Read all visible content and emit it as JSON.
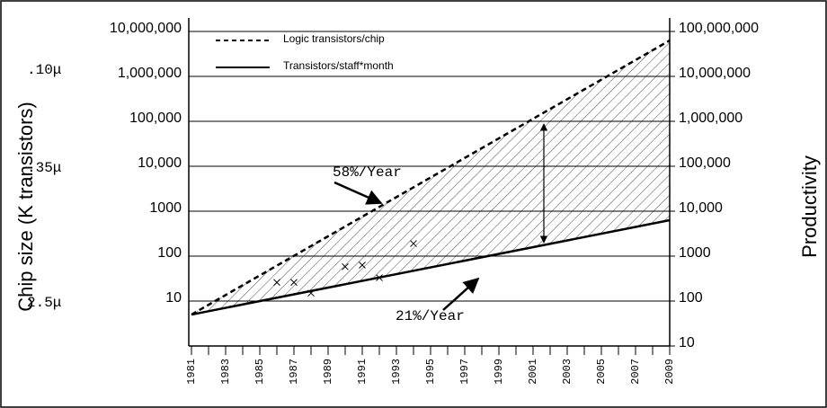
{
  "chart_data": {
    "type": "line",
    "y_label": "Chip size (K transistors)",
    "y2_label": "Productivity",
    "x": [
      1981,
      2009
    ],
    "series": [
      {
        "name": "Logic transistors/chip",
        "color": "#000000",
        "dashed": true,
        "values": [
          5,
          6300000
        ]
      },
      {
        "name": "Transistors/staff*month",
        "color": "#000000",
        "dashed": false,
        "values": [
          5,
          630
        ]
      }
    ],
    "points": {
      "x": [
        1986,
        1987,
        1988,
        1990,
        1991,
        1992,
        1994
      ],
      "values": [
        26,
        26,
        15,
        58,
        63,
        33,
        190
      ]
    },
    "annotations": [
      "58%/Year",
      "21%/Year"
    ],
    "feature_sizes": [
      ".10μ",
      ".35μ",
      "2.5μ"
    ],
    "xlim": [
      1981,
      2009
    ],
    "xticks": [
      1981,
      1983,
      1985,
      1987,
      1989,
      1991,
      1993,
      1995,
      1997,
      1999,
      2001,
      2003,
      2005,
      2007,
      2009
    ],
    "ylim": [
      1,
      10000000
    ],
    "log_y": true,
    "yticks": [
      10,
      100,
      1000,
      {
        "value": 10000,
        "label": "10,000"
      },
      {
        "value": 100000,
        "label": "100,000"
      },
      {
        "value": 1000000,
        "label": "1,000,000"
      },
      {
        "value": 10000000,
        "label": "10,000,000"
      }
    ],
    "y2lim": [
      10,
      100000000
    ],
    "y2ticks": [
      10,
      100,
      1000,
      {
        "value": 10000,
        "label": "10,000"
      },
      {
        "value": 100000,
        "label": "100,000"
      },
      {
        "value": 1000000,
        "label": "1,000,000"
      },
      {
        "value": 10000000,
        "label": "10,000,000"
      },
      {
        "value": 100000000,
        "label": "100,000,000"
      }
    ],
    "grid": true
  }
}
